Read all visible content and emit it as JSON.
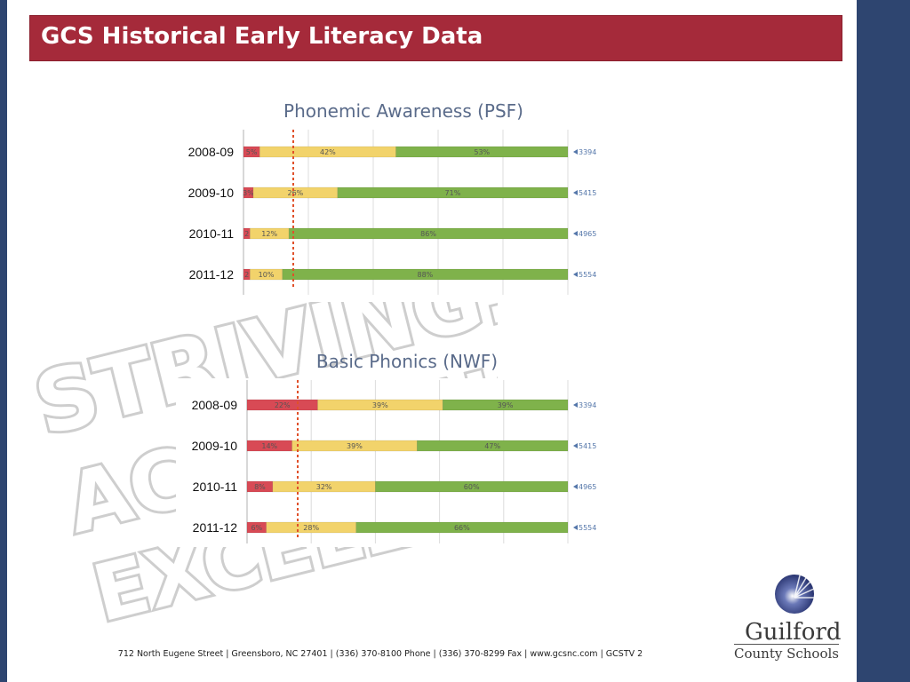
{
  "slide": {
    "title": "GCS Historical Early Literacy Data",
    "footer": "712 North Eugene Street  |  Greensboro, NC 27401  |  (336) 370-8100 Phone   |   (336) 370-8299 Fax  |   www.gcsnc.com   |   GCSTV 2",
    "watermark_lines": [
      "STRIVING.",
      "ACHIEVING.",
      "EXCELLING."
    ],
    "logo": {
      "line1": "Guilford",
      "line2": "County Schools"
    }
  },
  "colors": {
    "banner": "#a52a3a",
    "side_bars": "#2e4570",
    "red": "#d84a55",
    "yellow": "#f2d36b",
    "green": "#7fb24b",
    "arrow_text": "#5577aa",
    "threshold": "#e0502a"
  },
  "chart_data": [
    {
      "type": "bar",
      "stacked": true,
      "orientation": "horizontal",
      "title": "Phonemic Awareness (PSF)",
      "categories": [
        "2008-09",
        "2009-10",
        "2010-11",
        "2011-12"
      ],
      "series": [
        {
          "color": "#d84a55",
          "values": [
            5,
            3,
            2,
            2
          ],
          "labels": [
            "5%",
            "3%",
            "2",
            "2"
          ]
        },
        {
          "color": "#f2d36b",
          "values": [
            42,
            26,
            12,
            10
          ],
          "labels": [
            "42%",
            "26%",
            "12%",
            "10%"
          ]
        },
        {
          "color": "#7fb24b",
          "values": [
            53,
            71,
            86,
            88
          ],
          "labels": [
            "53%",
            "71%",
            "86%",
            "88%"
          ]
        }
      ],
      "counts": [
        "3394",
        "5415",
        "4965",
        "5554"
      ],
      "threshold": 15,
      "xlim": [
        0,
        100
      ]
    },
    {
      "type": "bar",
      "stacked": true,
      "orientation": "horizontal",
      "title": "Basic Phonics (NWF)",
      "categories": [
        "2008-09",
        "2009-10",
        "2010-11",
        "2011-12"
      ],
      "series": [
        {
          "color": "#d84a55",
          "values": [
            22,
            14,
            8,
            6
          ],
          "labels": [
            "22%",
            "14%",
            "8%",
            "6%"
          ]
        },
        {
          "color": "#f2d36b",
          "values": [
            39,
            39,
            32,
            28
          ],
          "labels": [
            "39%",
            "39%",
            "32%",
            "28%"
          ]
        },
        {
          "color": "#7fb24b",
          "values": [
            39,
            47,
            60,
            66
          ],
          "labels": [
            "39%",
            "47%",
            "60%",
            "66%"
          ]
        }
      ],
      "counts": [
        "3394",
        "5415",
        "4965",
        "5554"
      ],
      "threshold": 15,
      "xlim": [
        0,
        100
      ]
    }
  ]
}
